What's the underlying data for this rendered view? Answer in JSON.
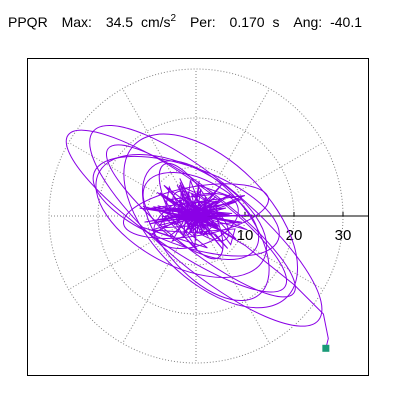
{
  "header": {
    "station": "PPQR",
    "max_label": "Max:",
    "max_value": "34.5",
    "max_unit": "cm/s",
    "max_unit_exp": "2",
    "per_label": "Per:",
    "per_value": "0.170",
    "per_unit": "s",
    "ang_label": "Ang:",
    "ang_value": "-40.1"
  },
  "chart_data": {
    "type": "polar-particle-motion",
    "title": "",
    "radial_ticks": [
      10,
      20,
      30
    ],
    "radial_tick_labels": [
      "10",
      "20",
      "30"
    ],
    "rlim": [
      0,
      30
    ],
    "spoke_angles_deg": [
      0,
      30,
      60,
      90,
      120,
      150,
      180,
      210,
      240,
      270,
      300,
      330
    ],
    "grid": true,
    "peak_direction_deg": -40.1,
    "peak_amplitude": 34.5,
    "colors": {
      "trace": "#8a00e6",
      "grid": "#808080",
      "end_marker": "#1a9a78",
      "axis": "#000000"
    },
    "series": [
      {
        "ellipses": [
          {
            "a": 30,
            "b": 9,
            "rot": -40,
            "cx": 2,
            "cy": -2
          },
          {
            "a": 27,
            "b": 7,
            "rot": -35,
            "cx": -4,
            "cy": 1
          },
          {
            "a": 22,
            "b": 12,
            "rot": -45,
            "cx": 3,
            "cy": -1
          },
          {
            "a": 20,
            "b": 8,
            "rot": -20,
            "cx": -2,
            "cy": 2
          },
          {
            "a": 17,
            "b": 9,
            "rot": -50,
            "cx": 2,
            "cy": -3
          },
          {
            "a": 15,
            "b": 5,
            "rot": 10,
            "cx": 0,
            "cy": 1
          },
          {
            "a": 13,
            "b": 7,
            "rot": -30,
            "cx": 1,
            "cy": 0
          },
          {
            "a": 11,
            "b": 4,
            "rot": -60,
            "cx": -1,
            "cy": 1
          },
          {
            "a": 9,
            "b": 5,
            "rot": 20,
            "cx": 0,
            "cy": -1
          },
          {
            "a": 7,
            "b": 3,
            "rot": -40,
            "cx": 1,
            "cy": 0
          },
          {
            "a": 24,
            "b": 6,
            "rot": -38,
            "cx": 1,
            "cy": -1
          },
          {
            "a": 19,
            "b": 10,
            "rot": -28,
            "cx": -3,
            "cy": 0
          }
        ],
        "tail": [
          [
            0,
            0
          ],
          [
            10,
            -6
          ],
          [
            20,
            -14
          ],
          [
            26,
            -20
          ],
          [
            27,
            -25
          ],
          [
            26.5,
            -27
          ]
        ],
        "end_point": [
          26.5,
          -27
        ]
      }
    ]
  }
}
